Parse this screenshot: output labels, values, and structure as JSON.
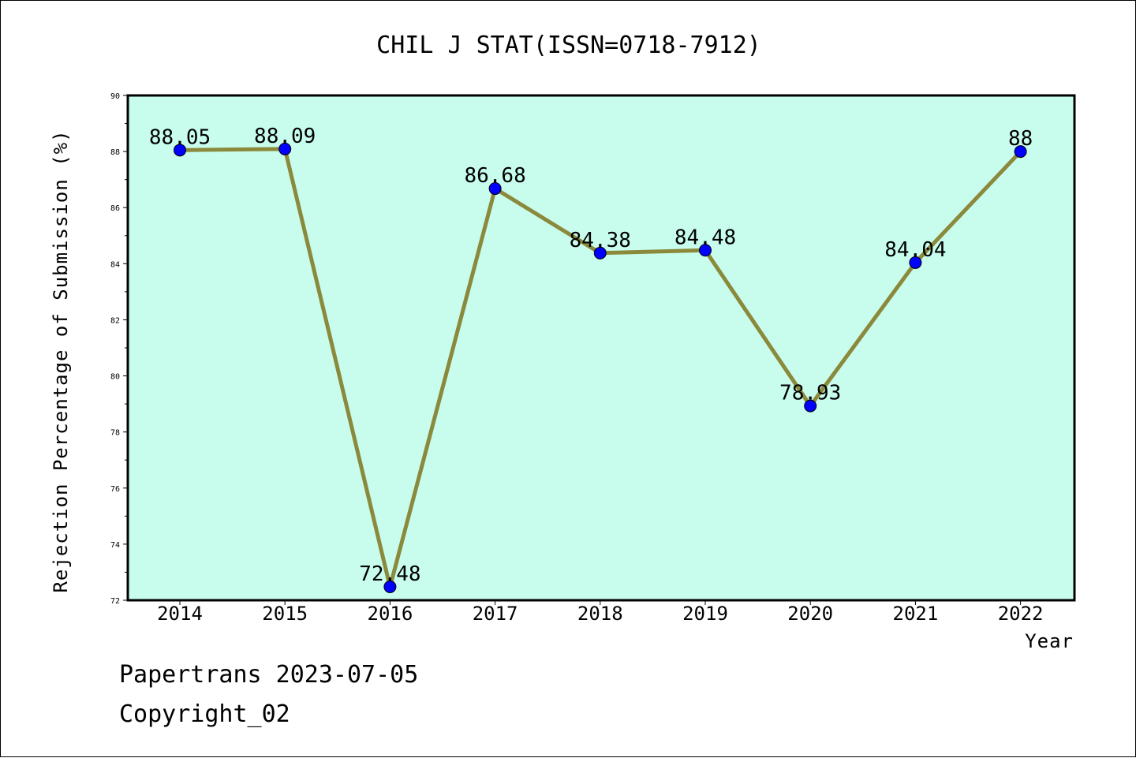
{
  "chart_data": {
    "type": "line",
    "title": "CHIL J STAT(ISSN=0718-7912)",
    "xlabel": "Year",
    "ylabel": "Rejection Percentage of Submission (%)",
    "categories": [
      "2014",
      "2015",
      "2016",
      "2017",
      "2018",
      "2019",
      "2020",
      "2021",
      "2022"
    ],
    "values": [
      88.05,
      88.09,
      72.48,
      86.68,
      84.38,
      84.48,
      78.93,
      84.04,
      88
    ],
    "data_labels": [
      "88.05",
      "88.09",
      "72.48",
      "86.68",
      "84.38",
      "84.48",
      "78.93",
      "84.04",
      "88"
    ],
    "ylim": [
      72,
      90
    ],
    "yticks": [
      "72",
      "74",
      "76",
      "78",
      "80",
      "82",
      "84",
      "86",
      "88",
      "90"
    ],
    "grid": false,
    "colors": {
      "plot_background": "#c8fdee",
      "line": "#8b8a3c",
      "marker": "#0000ff"
    }
  },
  "footer": {
    "line1": "Papertrans 2023-07-05",
    "line2": "Copyright_02"
  }
}
